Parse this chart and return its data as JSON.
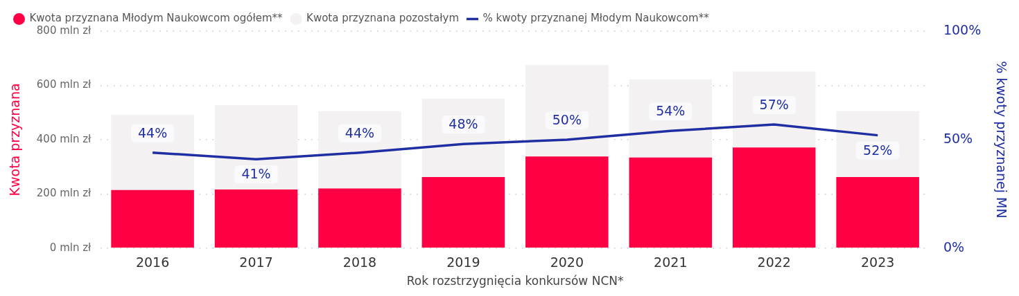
{
  "chart_data": {
    "type": "bar",
    "stacked": true,
    "xlabel": "Rok rozstrzygnięcia konkursów NCN*",
    "ylabel": "Kwota przyznana",
    "y2label": "% kwoty przyznanej MN",
    "categories": [
      "2016",
      "2017",
      "2018",
      "2019",
      "2020",
      "2021",
      "2022",
      "2023"
    ],
    "series": [
      {
        "name": "Kwota przyznana Młodym Naukowcom ogółem**",
        "color": "#ff0044",
        "values": [
          214,
          216,
          220,
          262,
          338,
          334,
          371,
          262
        ]
      },
      {
        "name": "Kwota przyznana pozostałym",
        "color": "#f3f1f2",
        "values": [
          278,
          311,
          285,
          289,
          338,
          288,
          280,
          243
        ]
      },
      {
        "name": "% kwoty przyznanej Młodym Naukowcom**",
        "type": "line",
        "axis": "y2",
        "color": "#1f2fa3",
        "values": [
          44,
          41,
          44,
          48,
          50,
          54,
          57,
          52
        ],
        "value_labels": [
          "44%",
          "41%",
          "44%",
          "48%",
          "50%",
          "54%",
          "57%",
          "52%"
        ]
      }
    ],
    "ylim": [
      0,
      800
    ],
    "yticks": [
      {
        "value": 0,
        "label": "0 mln zł"
      },
      {
        "value": 200,
        "label": "200 mln zł"
      },
      {
        "value": 400,
        "label": "400 mln zł"
      },
      {
        "value": 600,
        "label": "600 mln zł"
      },
      {
        "value": 800,
        "label": "800 mln zł"
      }
    ],
    "y2lim": [
      0,
      100
    ],
    "y2ticks": [
      {
        "value": 0,
        "label": "0%"
      },
      {
        "value": 50,
        "label": "50%"
      },
      {
        "value": 100,
        "label": "100%"
      }
    ],
    "grid": "y",
    "legend": "top left"
  }
}
